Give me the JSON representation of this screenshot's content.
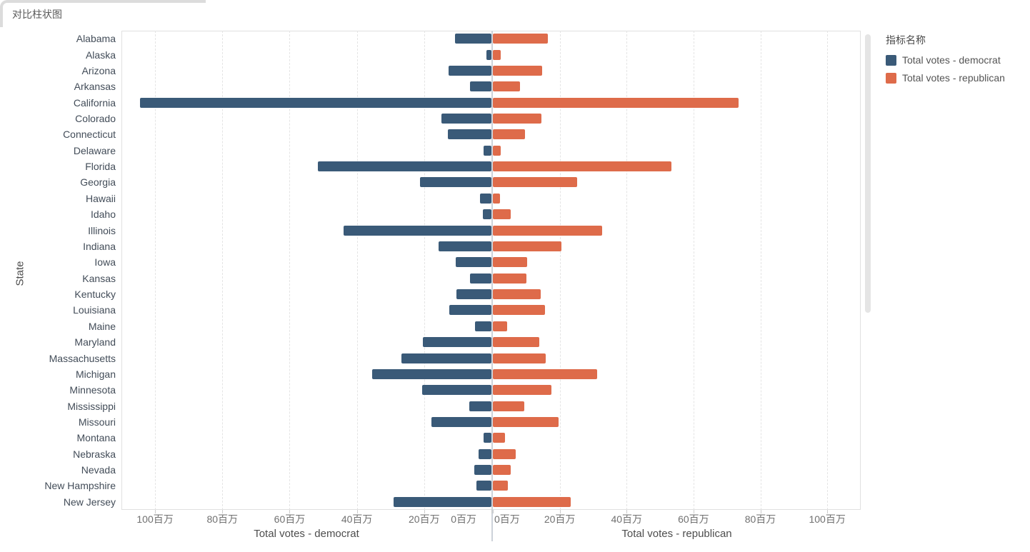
{
  "title": "对比柱状图",
  "legend": {
    "title": "指标名称",
    "items": [
      {
        "label": "Total votes - democrat",
        "color": "#3a5a78"
      },
      {
        "label": "Total votes - republican",
        "color": "#de6b4a"
      }
    ]
  },
  "y_axis": {
    "title": "State"
  },
  "x_axis_left": {
    "title": "Total votes - democrat",
    "ticks": [
      100,
      80,
      60,
      40,
      20,
      0
    ],
    "tick_labels": [
      "100百万",
      "80百万",
      "60百万",
      "40百万",
      "20百万",
      "0百万"
    ]
  },
  "x_axis_right": {
    "title": "Total votes - republican",
    "ticks": [
      0,
      20,
      40,
      60,
      80,
      100
    ],
    "tick_labels": [
      "0百万",
      "20百万",
      "40百万",
      "60百万",
      "80百万",
      "100百万"
    ]
  },
  "chart_data": {
    "type": "bar",
    "orientation": "horizontal-diverging",
    "title": "对比柱状图",
    "unit": "百万 (millions)",
    "ylabel": "State",
    "xlim": [
      0,
      110
    ],
    "tick_step": 20,
    "grid": "dashed-vertical",
    "legend_position": "right",
    "categories": [
      "Alabama",
      "Alaska",
      "Arizona",
      "Arkansas",
      "California",
      "Colorado",
      "Connecticut",
      "Delaware",
      "Florida",
      "Georgia",
      "Hawaii",
      "Idaho",
      "Illinois",
      "Indiana",
      "Iowa",
      "Kansas",
      "Kentucky",
      "Louisiana",
      "Maine",
      "Maryland",
      "Massachusetts",
      "Michigan",
      "Minnesota",
      "Mississippi",
      "Missouri",
      "Montana",
      "Nebraska",
      "Nevada",
      "New Hampshire",
      "New Jersey"
    ],
    "series": [
      {
        "name": "Total votes - democrat",
        "color": "#3a5a78",
        "axis": "left-reversed",
        "values": [
          10.9,
          1.5,
          12.7,
          6.4,
          104.5,
          14.8,
          12.9,
          2.4,
          51.5,
          21.2,
          3.5,
          2.6,
          44.0,
          15.8,
          10.7,
          6.4,
          10.3,
          12.6,
          4.9,
          20.3,
          26.8,
          35.5,
          20.5,
          6.6,
          17.8,
          2.4,
          3.9,
          5.1,
          4.5,
          29.1
        ]
      },
      {
        "name": "Total votes - republican",
        "color": "#de6b4a",
        "axis": "right",
        "values": [
          16.5,
          2.3,
          14.7,
          8.1,
          73.5,
          14.6,
          9.7,
          2.3,
          53.5,
          25.2,
          2.1,
          5.3,
          32.7,
          20.6,
          10.2,
          10.0,
          14.4,
          15.5,
          4.2,
          13.8,
          15.9,
          31.1,
          17.6,
          9.5,
          19.7,
          3.6,
          6.8,
          5.3,
          4.4,
          23.3
        ]
      }
    ]
  }
}
